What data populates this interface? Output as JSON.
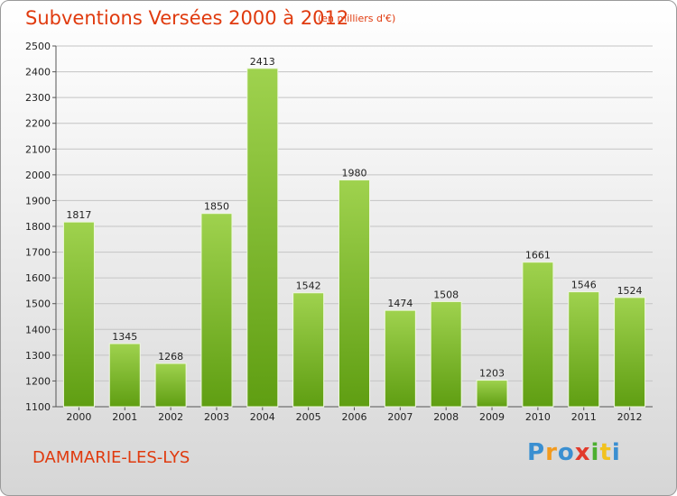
{
  "header": {
    "title": "Subventions Versées 2000 à 2012",
    "subtitle": "(en milliers d'€)"
  },
  "footer": {
    "commune": "DAMMARIE-LES-LYS"
  },
  "logo": {
    "letters": [
      "P",
      "r",
      "o",
      "x",
      "i",
      "t",
      "i"
    ],
    "colors": [
      "#3a8fd1",
      "#f29a1e",
      "#3a8fd1",
      "#e23a2b",
      "#4caf2f",
      "#f2c21e",
      "#3a8fd1"
    ]
  },
  "colors": {
    "accent": "#e03a0e",
    "bar_top": "#9fd24e",
    "bar_bottom": "#5f9e12"
  },
  "chart_data": {
    "type": "bar",
    "title": "Subventions Versées 2000 à 2012",
    "subtitle": "(en milliers d'€)",
    "categories": [
      "2000",
      "2001",
      "2002",
      "2003",
      "2004",
      "2005",
      "2006",
      "2007",
      "2008",
      "2009",
      "2010",
      "2011",
      "2012"
    ],
    "values": [
      1817,
      1345,
      1268,
      1850,
      2413,
      1542,
      1980,
      1474,
      1508,
      1203,
      1661,
      1546,
      1524
    ],
    "ylim": [
      1100,
      2500
    ],
    "yticks": [
      1100,
      1200,
      1300,
      1400,
      1500,
      1600,
      1700,
      1800,
      1900,
      2000,
      2100,
      2200,
      2300,
      2400,
      2500
    ],
    "grid": true,
    "data_labels": true
  }
}
